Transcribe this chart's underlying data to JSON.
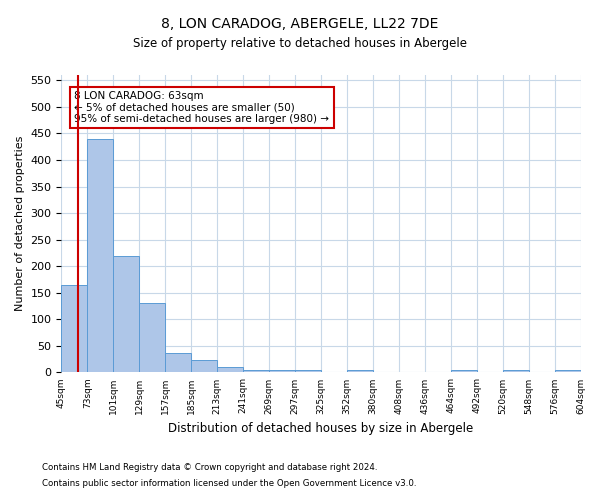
{
  "title": "8, LON CARADOG, ABERGELE, LL22 7DE",
  "subtitle": "Size of property relative to detached houses in Abergele",
  "xlabel": "Distribution of detached houses by size in Abergele",
  "ylabel": "Number of detached properties",
  "footnote1": "Contains HM Land Registry data © Crown copyright and database right 2024.",
  "footnote2": "Contains public sector information licensed under the Open Government Licence v3.0.",
  "bins": [
    "45sqm",
    "73sqm",
    "101sqm",
    "129sqm",
    "157sqm",
    "185sqm",
    "213sqm",
    "241sqm",
    "269sqm",
    "297sqm",
    "325sqm",
    "352sqm",
    "380sqm",
    "408sqm",
    "436sqm",
    "464sqm",
    "492sqm",
    "520sqm",
    "548sqm",
    "576sqm",
    "604sqm"
  ],
  "values": [
    165,
    440,
    220,
    130,
    37,
    24,
    10,
    5,
    5,
    5,
    0,
    5,
    0,
    0,
    0,
    5,
    0,
    5,
    0,
    5
  ],
  "bar_color": "#aec6e8",
  "bar_edge_color": "#5b9bd5",
  "highlight_line_color": "#cc0000",
  "annotation_text": "8 LON CARADOG: 63sqm\n← 5% of detached houses are smaller (50)\n95% of semi-detached houses are larger (980) →",
  "annotation_box_color": "#ffffff",
  "annotation_box_edge_color": "#cc0000",
  "background_color": "#ffffff",
  "grid_color": "#c8d8e8",
  "ylim": [
    0,
    560
  ],
  "yticks": [
    0,
    50,
    100,
    150,
    200,
    250,
    300,
    350,
    400,
    450,
    500,
    550
  ]
}
